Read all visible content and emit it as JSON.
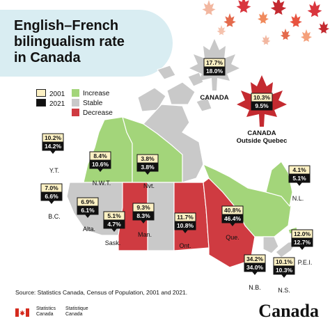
{
  "title_lines": [
    "English–French",
    "bilingualism rate",
    "in Canada"
  ],
  "colors": {
    "increase": "#a3d57a",
    "stable": "#c9c9c9",
    "decrease": "#cf3b41",
    "callout_2001": "#fdf1c4",
    "callout_2021": "#111111",
    "title_panel": "#d9edf2"
  },
  "legend": {
    "years": [
      "2001",
      "2021"
    ],
    "categories": [
      {
        "label": "Increase",
        "key": "increase"
      },
      {
        "label": "Stable",
        "key": "stable"
      },
      {
        "label": "Decrease",
        "key": "decrease"
      }
    ]
  },
  "chart_data": {
    "type": "map",
    "series": [
      {
        "name": "2001"
      },
      {
        "name": "2021"
      }
    ],
    "regions": [
      {
        "name": "Y.T.",
        "v2001": "10.2%",
        "v2021": "14.2%",
        "trend": "increase"
      },
      {
        "name": "N.W.T.",
        "v2001": "8.4%",
        "v2021": "10.6%",
        "trend": "increase"
      },
      {
        "name": "Nvt.",
        "v2001": "3.8%",
        "v2021": "3.8%",
        "trend": "stable"
      },
      {
        "name": "B.C.",
        "v2001": "7.0%",
        "v2021": "6.6%",
        "trend": "stable"
      },
      {
        "name": "Alta.",
        "v2001": "6.9%",
        "v2021": "6.1%",
        "trend": "decrease"
      },
      {
        "name": "Sask.",
        "v2001": "5.1%",
        "v2021": "4.7%",
        "trend": "stable"
      },
      {
        "name": "Man.",
        "v2001": "9.3%",
        "v2021": "8.3%",
        "trend": "decrease"
      },
      {
        "name": "Ont.",
        "v2001": "11.7%",
        "v2021": "10.8%",
        "trend": "decrease"
      },
      {
        "name": "Que.",
        "v2001": "40.8%",
        "v2021": "46.4%",
        "trend": "increase"
      },
      {
        "name": "N.L.",
        "v2001": "4.1%",
        "v2021": "5.1%",
        "trend": "increase"
      },
      {
        "name": "P.E.I.",
        "v2001": "12.0%",
        "v2021": "12.7%",
        "trend": "increase"
      },
      {
        "name": "N.B.",
        "v2001": "34.2%",
        "v2021": "34.0%",
        "trend": "stable"
      },
      {
        "name": "N.S.",
        "v2001": "10.1%",
        "v2021": "10.3%",
        "trend": "stable"
      }
    ],
    "national": [
      {
        "label": "CANADA",
        "v2001": "17.7%",
        "v2021": "18.0%"
      },
      {
        "label": "CANADA\nOutside Quebec",
        "v2001": "10.3%",
        "v2021": "9.5%"
      }
    ]
  },
  "source": "Source:  Statistics Canada, Census of Population, 2001 and 2021.",
  "footer": {
    "agency_en": [
      "Statistics",
      "Canada"
    ],
    "agency_fr": [
      "Statistique",
      "Canada"
    ],
    "wordmark": "Canada"
  }
}
